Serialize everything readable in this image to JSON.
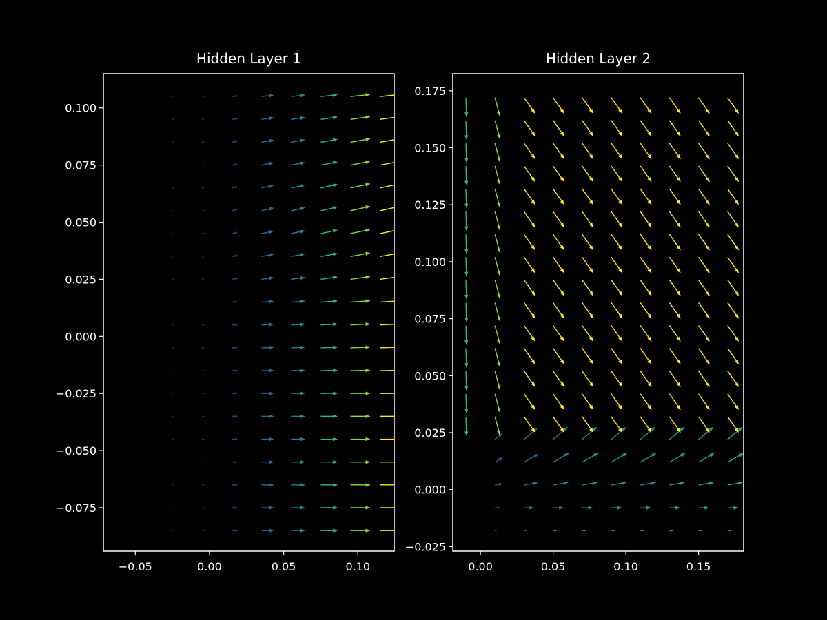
{
  "figure": {
    "background": "#000000",
    "foreground": "#ffffff",
    "colormap": "viridis"
  },
  "chart_data": [
    {
      "type": "quiver",
      "title": "Hidden Layer 1",
      "xlim": [
        -0.0715,
        0.1245
      ],
      "ylim": [
        -0.094,
        0.115
      ],
      "x_ticks": [
        -0.05,
        0.0,
        0.05,
        0.1
      ],
      "x_tick_labels": [
        "−0.05",
        "0.00",
        "0.05",
        "0.10"
      ],
      "y_ticks": [
        -0.075,
        -0.05,
        -0.025,
        0.0,
        0.025,
        0.05,
        0.075,
        0.1
      ],
      "y_tick_labels": [
        "−0.075",
        "−0.050",
        "−0.025",
        "0.000",
        "0.025",
        "0.050",
        "0.075",
        "0.100"
      ],
      "grid": false,
      "grid_x": [
        -0.065,
        -0.045,
        -0.025,
        -0.005,
        0.015,
        0.035,
        0.055,
        0.075,
        0.095,
        0.115
      ],
      "grid_y": [
        -0.085,
        -0.075,
        -0.065,
        -0.055,
        -0.045,
        -0.035,
        -0.025,
        -0.015,
        -0.005,
        0.005,
        0.015,
        0.025,
        0.035,
        0.045,
        0.055,
        0.065,
        0.075,
        0.085,
        0.095,
        0.105
      ],
      "arrow_length_x": [
        0.0005,
        0.0008,
        0.0012,
        0.0018,
        0.004,
        0.0085,
        0.0095,
        0.0115,
        0.0135,
        0.015
      ],
      "arrow_angle_by_row": [
        0,
        0,
        0,
        0,
        0,
        0,
        0.5,
        1,
        2,
        3,
        4,
        8,
        10,
        12,
        13,
        12,
        11,
        10,
        8,
        6
      ],
      "color_by_column": [
        "#440154",
        "#46085c",
        "#471063",
        "#482071",
        "#443983",
        "#31688e",
        "#26828e",
        "#35b779",
        "#8fd744",
        "#fde725"
      ]
    },
    {
      "type": "quiver",
      "title": "Hidden Layer 2",
      "xlim": [
        -0.019,
        0.181
      ],
      "ylim": [
        -0.027,
        0.1825
      ],
      "x_ticks": [
        0.0,
        0.05,
        0.1,
        0.15
      ],
      "x_tick_labels": [
        "0.00",
        "0.05",
        "0.10",
        "0.15"
      ],
      "y_ticks": [
        -0.025,
        0.0,
        0.025,
        0.05,
        0.075,
        0.1,
        0.125,
        0.15,
        0.175
      ],
      "y_tick_labels": [
        "−0.025",
        "0.000",
        "0.025",
        "0.050",
        "0.075",
        "0.100",
        "0.125",
        "0.150",
        "0.175"
      ],
      "grid": false,
      "grid_x": [
        -0.01,
        0.01,
        0.03,
        0.05,
        0.07,
        0.09,
        0.11,
        0.13,
        0.15,
        0.17
      ],
      "grid_y": [
        -0.018,
        -0.008,
        0.002,
        0.012,
        0.022,
        0.032,
        0.042,
        0.052,
        0.062,
        0.072,
        0.082,
        0.092,
        0.102,
        0.112,
        0.122,
        0.132,
        0.142,
        0.152,
        0.162,
        0.172
      ],
      "lower_rows": 5,
      "lower_angle_by_row": [
        0,
        0,
        10,
        30,
        40
      ],
      "lower_scale_by_row": [
        0.2,
        0.55,
        0.8,
        0.95,
        1.0
      ],
      "lower_col_scale": [
        0.05,
        0.5,
        0.9,
        1,
        1,
        1,
        1,
        1,
        1,
        1
      ],
      "lower_color_by_column": [
        "#440154",
        "#3b528b",
        "#31688e",
        "#2a788e",
        "#21918c",
        "#21918c",
        "#21918c",
        "#1fa187",
        "#1fa187",
        "#22a884"
      ],
      "upper_angle_by_column": [
        -88,
        -75,
        -55,
        -55,
        -55,
        -55,
        -55,
        -55,
        -55,
        -55
      ],
      "upper_color_by_column": [
        "#35b779",
        "#8fd744",
        "#fde725",
        "#fde725",
        "#fde725",
        "#fde725",
        "#fde725",
        "#fde725",
        "#fde725",
        "#fde725"
      ],
      "arrow_length": 0.0135
    }
  ]
}
